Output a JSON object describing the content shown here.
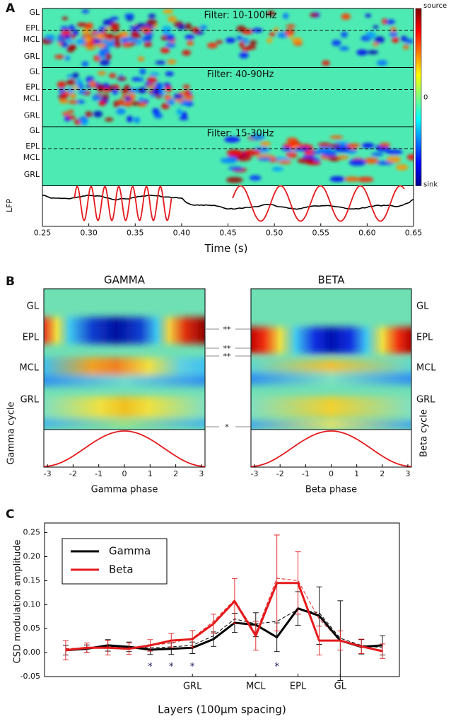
{
  "panels": [
    "A",
    "B",
    "C"
  ],
  "chart_data": [
    {
      "type": "heatmap",
      "layers": [
        "GL",
        "EPL",
        "MCL",
        "GRL"
      ],
      "titles": [
        "Filter: 10-100Hz",
        "Filter: 40-90Hz",
        "Filter: 15-30Hz"
      ],
      "colorbar_labels": [
        "source",
        "0",
        "sink"
      ],
      "trace_label": "LFP",
      "xlabel": "Time (s)",
      "xlim": [
        0.25,
        0.65
      ],
      "xticks": [
        0.25,
        {
          "value": 0.3,
          "label": "0.30"
        },
        0.35,
        {
          "value": 0.4,
          "label": "0.40"
        },
        0.45,
        {
          "value": 0.5,
          "label": "0.50"
        },
        0.55,
        {
          "value": 0.6,
          "label": "0.60"
        },
        0.65
      ]
    },
    {
      "type": "phase",
      "title": "GAMMA",
      "layers": [
        "GL",
        "EPL",
        "MCL",
        "GRL"
      ],
      "xlabel": "Gamma phase",
      "ylabel": "Gamma cycle",
      "xlim": [
        -3.14,
        3.14
      ],
      "xticks": [
        -3,
        -2,
        -1,
        0,
        1,
        2,
        3
      ],
      "significance": [
        "**",
        "**",
        "**",
        "*"
      ]
    },
    {
      "type": "phase",
      "title": "BETA",
      "layers": [
        "GL",
        "EPL",
        "MCL",
        "GRL"
      ],
      "xlabel": "Beta phase",
      "ylabel": "Beta cycle",
      "xlim": [
        -3.14,
        3.14
      ],
      "xticks": [
        -3,
        -2,
        -1,
        0,
        1,
        2,
        3
      ]
    },
    {
      "type": "line",
      "xlabel": "Layers (100μm spacing)",
      "ylabel": "CSD modulation amplitude",
      "x": [
        1,
        2,
        3,
        4,
        5,
        6,
        7,
        8,
        9,
        10,
        11,
        12,
        13,
        14,
        15,
        16
      ],
      "xlim": [
        0,
        16.8
      ],
      "ylim": [
        -0.05,
        0.27
      ],
      "xticks": [
        {
          "value": 7,
          "label": "GRL"
        },
        {
          "value": 10,
          "label": "MCL"
        },
        {
          "value": 12,
          "label": "EPL"
        },
        {
          "value": 14,
          "label": "GL"
        }
      ],
      "yticks": [
        -0.05,
        {
          "value": 0,
          "label": "0.00"
        },
        0.05,
        {
          "value": 0.1,
          "label": "0.10"
        },
        0.15,
        {
          "value": 0.2,
          "label": "0.20"
        },
        0.25
      ],
      "legend": "upper left",
      "series": [
        {
          "name": "Gamma",
          "color": "#000000",
          "values": [
            0.005,
            0.008,
            0.015,
            0.012,
            0.006,
            0.008,
            0.01,
            0.028,
            0.062,
            0.058,
            0.032,
            0.092,
            0.077,
            0.025,
            0.012,
            0.015
          ],
          "errors": [
            0.01,
            0.008,
            0.012,
            0.01,
            0.01,
            0.012,
            0.012,
            0.015,
            0.02,
            0.025,
            0.03,
            0.035,
            0.06,
            0.083,
            0.015,
            0.02
          ]
        },
        {
          "name": "Beta",
          "color": "#e41a1c",
          "values": [
            0.005,
            0.01,
            0.01,
            0.008,
            0.015,
            0.025,
            0.028,
            0.06,
            0.107,
            0.035,
            0.145,
            0.145,
            0.025,
            0.025,
            0.013,
            0.003
          ],
          "errors": [
            0.02,
            0.01,
            0.015,
            0.012,
            0.012,
            0.015,
            0.018,
            0.02,
            0.047,
            0.03,
            0.1,
            0.065,
            0.03,
            0.02,
            0.015,
            0.015
          ]
        },
        {
          "color": "#000000",
          "dash": true,
          "values": [
            0.008,
            0.01,
            0.012,
            0.012,
            0.01,
            0.012,
            0.015,
            0.035,
            0.07,
            0.06,
            0.065,
            0.09,
            0.083,
            0.03,
            0.015,
            0.01
          ]
        },
        {
          "color": "#e41a1c",
          "dash": true,
          "values": [
            0.008,
            0.01,
            0.012,
            0.01,
            0.015,
            0.02,
            0.03,
            0.065,
            0.11,
            0.04,
            0.155,
            0.15,
            0.07,
            0.025,
            0.012,
            0.005
          ]
        }
      ],
      "stars": {
        "x": [
          5,
          6,
          7,
          11
        ],
        "y": -0.026,
        "label": "*",
        "color": "#1a1a5e"
      }
    }
  ]
}
